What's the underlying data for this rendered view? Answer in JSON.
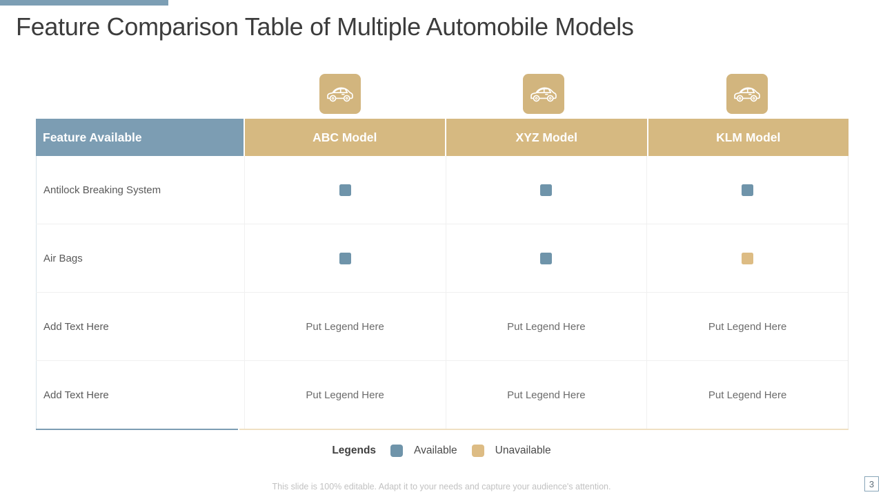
{
  "slide": {
    "title": "Feature Comparison Table of Multiple Automobile Models",
    "page_number": "3",
    "footer_note": "This slide is 100% editable. Adapt it to your needs and capture your audience's attention."
  },
  "colors": {
    "accent_blue": "#7C9DB3",
    "accent_tan": "#D6B981",
    "available_swatch": "#6F94AA",
    "unavailable_swatch": "#DDBC84",
    "icon_tile": "#D2B57E"
  },
  "models": [
    {
      "icon": "car-icon"
    },
    {
      "icon": "car-icon"
    },
    {
      "icon": "car-icon"
    }
  ],
  "table": {
    "feature_header": "Feature Available",
    "model_headers": [
      "ABC Model",
      "XYZ Model",
      "KLM Model"
    ],
    "rows": [
      {
        "feature": "Antilock Breaking System",
        "feature_editable": false,
        "cells": [
          {
            "type": "swatch",
            "status": "available"
          },
          {
            "type": "swatch",
            "status": "available"
          },
          {
            "type": "swatch",
            "status": "available"
          }
        ]
      },
      {
        "feature": "Air Bags",
        "feature_editable": false,
        "cells": [
          {
            "type": "swatch",
            "status": "available"
          },
          {
            "type": "swatch",
            "status": "available"
          },
          {
            "type": "swatch",
            "status": "unavailable"
          }
        ]
      },
      {
        "feature": "Add Text Here",
        "feature_editable": true,
        "cells": [
          {
            "type": "text",
            "label": "Put Legend Here"
          },
          {
            "type": "text",
            "label": "Put Legend Here"
          },
          {
            "type": "text",
            "label": "Put Legend Here"
          }
        ]
      },
      {
        "feature": "Add Text Here",
        "feature_editable": true,
        "cells": [
          {
            "type": "text",
            "label": "Put Legend Here"
          },
          {
            "type": "text",
            "label": "Put Legend Here"
          },
          {
            "type": "text",
            "label": "Put Legend Here"
          }
        ]
      }
    ]
  },
  "legend": {
    "title": "Legends",
    "items": [
      {
        "label": "Available",
        "status": "available"
      },
      {
        "label": "Unavailable",
        "status": "unavailable"
      }
    ]
  }
}
